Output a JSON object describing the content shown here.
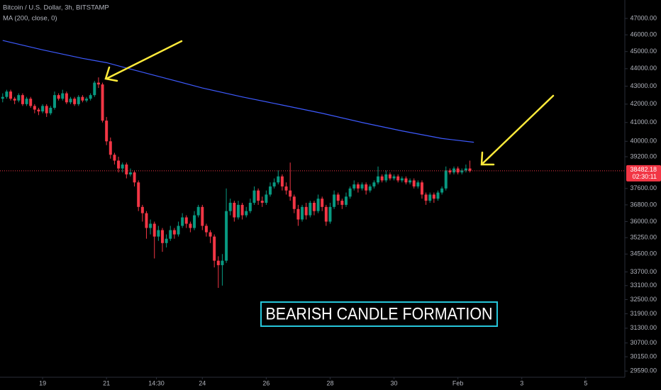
{
  "chart_data": {
    "type": "candlestick",
    "title": "Bitcoin / U.S. Dollar, 3h, BITSTAMP",
    "subtitle": "MA (200, close, 0)",
    "annotation": "BEARISH CANDLE FORMATION",
    "up_color": "#089981",
    "down_color": "#f23645",
    "log_scale": true,
    "grid": false,
    "x": [
      -10,
      -9,
      -8,
      -7,
      -6,
      -5,
      -4,
      -3,
      -2,
      -1,
      0,
      1,
      2,
      3,
      4,
      5,
      6,
      7,
      8,
      9,
      10,
      11,
      12,
      13,
      14,
      15,
      16,
      17,
      18,
      19,
      20,
      21,
      22,
      23,
      24,
      25,
      26,
      27,
      28,
      29,
      30,
      31,
      32,
      33,
      34,
      35,
      36,
      37,
      38,
      39,
      40,
      41,
      42,
      43,
      44,
      45,
      46,
      47,
      48,
      49,
      50,
      51,
      52,
      53,
      54,
      55,
      56,
      57,
      58,
      59,
      60,
      61,
      62,
      63,
      64,
      65,
      66,
      67,
      68,
      69,
      70,
      71,
      72,
      73,
      74,
      75,
      76,
      77,
      78,
      79,
      80,
      81,
      82,
      83,
      84,
      85,
      86,
      87,
      88,
      89,
      90,
      91,
      92,
      93,
      94,
      95,
      96,
      97,
      98,
      99,
      100,
      101,
      102,
      103,
      104,
      105,
      106,
      107
    ],
    "open": [
      42300,
      42400,
      42700,
      42300,
      42200,
      42500,
      42000,
      42300,
      41900,
      41700,
      41600,
      41900,
      41500,
      41800,
      42500,
      42300,
      42600,
      42100,
      42300,
      42000,
      42400,
      42200,
      42300,
      42500,
      43200,
      43100,
      41100,
      40000,
      39300,
      39000,
      38600,
      38800,
      38300,
      38400,
      37900,
      36700,
      36400,
      35700,
      35900,
      35300,
      35600,
      35000,
      35200,
      35600,
      35400,
      35800,
      36200,
      35900,
      35700,
      36300,
      36700,
      35800,
      35500,
      35300,
      34200,
      34000,
      34200,
      36500,
      36900,
      36200,
      36800,
      36300,
      36500,
      36900,
      37500,
      37000,
      36900,
      37300,
      37700,
      37900,
      38200,
      37700,
      37500,
      37200,
      36600,
      36100,
      36700,
      36300,
      36900,
      36500,
      37100,
      36700,
      36000,
      36700,
      37300,
      37000,
      36800,
      37200,
      37600,
      37800,
      37600,
      37800,
      37500,
      37700,
      37900,
      38200,
      38000,
      38300,
      38100,
      38200,
      38000,
      38100,
      37900,
      38000,
      37700,
      37900,
      37300,
      37000,
      37300,
      37100,
      37400,
      37600,
      38500,
      38400,
      38600,
      38400,
      38500,
      38600
    ],
    "high": [
      42600,
      42800,
      42800,
      42400,
      42600,
      42600,
      42400,
      42400,
      42000,
      41800,
      42000,
      42000,
      41900,
      42700,
      42600,
      42800,
      42700,
      42400,
      42400,
      42500,
      42500,
      42400,
      42600,
      43300,
      43500,
      43200,
      41300,
      40200,
      39400,
      39200,
      38900,
      38900,
      38600,
      38500,
      38000,
      36800,
      36500,
      36100,
      36000,
      35800,
      35700,
      35400,
      35800,
      35700,
      36000,
      36400,
      36300,
      36000,
      36500,
      36800,
      36800,
      35900,
      35600,
      35400,
      34400,
      34500,
      37600,
      37100,
      37000,
      37000,
      36900,
      36700,
      37100,
      37700,
      37600,
      37200,
      37500,
      37900,
      38100,
      38500,
      38300,
      37900,
      38900,
      37300,
      36800,
      36800,
      36900,
      37000,
      37000,
      37300,
      37200,
      36800,
      36900,
      37500,
      37400,
      37100,
      37400,
      37700,
      38000,
      37900,
      37900,
      37900,
      37800,
      38000,
      38700,
      38300,
      38500,
      38400,
      38300,
      38300,
      38200,
      38200,
      38100,
      38100,
      38000,
      38000,
      37400,
      37400,
      37400,
      37500,
      37700,
      38700,
      38600,
      38700,
      38700,
      38600,
      38800,
      39000
    ],
    "low": [
      42100,
      42300,
      42200,
      42000,
      42100,
      41900,
      41900,
      41800,
      41500,
      41400,
      41500,
      41300,
      41400,
      41700,
      42200,
      42200,
      42000,
      42000,
      41900,
      41900,
      42100,
      42100,
      42200,
      42400,
      42900,
      41000,
      39800,
      39100,
      38800,
      38400,
      38400,
      38100,
      38200,
      37700,
      36500,
      36000,
      35200,
      35400,
      34300,
      35100,
      34600,
      34800,
      35100,
      35200,
      35300,
      35700,
      35700,
      35500,
      35600,
      36200,
      35600,
      35300,
      35000,
      33900,
      33000,
      33100,
      34100,
      36300,
      36000,
      36100,
      36100,
      36200,
      36400,
      36800,
      36800,
      36700,
      36800,
      37200,
      37600,
      37800,
      37500,
      37300,
      37000,
      36400,
      35800,
      36000,
      36100,
      36200,
      36300,
      36400,
      36500,
      35800,
      35900,
      36600,
      36800,
      36600,
      36700,
      37100,
      37500,
      37400,
      37500,
      37300,
      37400,
      37600,
      37800,
      37900,
      37900,
      38000,
      38000,
      37900,
      37900,
      37800,
      37800,
      37600,
      37600,
      37100,
      36800,
      36900,
      36900,
      37000,
      37300,
      37500,
      38300,
      38300,
      38300,
      38300,
      38400,
      38400
    ],
    "close": [
      42400,
      42700,
      42300,
      42200,
      42500,
      42000,
      42300,
      41900,
      41700,
      41600,
      41900,
      41500,
      41800,
      42500,
      42300,
      42600,
      42100,
      42300,
      42000,
      42400,
      42200,
      42300,
      42500,
      43200,
      43100,
      41100,
      40000,
      39300,
      39000,
      38600,
      38800,
      38300,
      38400,
      37900,
      36700,
      36400,
      35700,
      35900,
      35300,
      35600,
      35000,
      35200,
      35600,
      35400,
      35800,
      36200,
      35900,
      35700,
      36300,
      36700,
      35800,
      35500,
      35300,
      34200,
      34000,
      34200,
      36500,
      36900,
      36200,
      36800,
      36300,
      36500,
      36900,
      37500,
      37000,
      36900,
      37300,
      37700,
      37900,
      38200,
      37700,
      37500,
      37200,
      36600,
      36100,
      36700,
      36300,
      36900,
      36500,
      37100,
      36700,
      36000,
      36700,
      37300,
      37000,
      36800,
      37200,
      37600,
      37800,
      37600,
      37800,
      37500,
      37700,
      37900,
      38200,
      38000,
      38300,
      38100,
      38200,
      38000,
      38100,
      37900,
      38000,
      37700,
      37900,
      37300,
      37000,
      37300,
      37100,
      37400,
      37600,
      38500,
      38400,
      38600,
      38400,
      38500,
      38600,
      38482.18
    ],
    "ma": {
      "color": "#3d5afe",
      "x": [
        -10,
        0,
        10,
        16,
        20,
        30,
        40,
        50,
        60,
        70,
        80,
        90,
        100,
        108
      ],
      "values": [
        45660,
        45100,
        44600,
        44350,
        44100,
        43500,
        42900,
        42400,
        41950,
        41500,
        41000,
        40550,
        40150,
        39950
      ]
    },
    "last_price": 38482.18,
    "countdown": "02:30:11",
    "xlim": [
      -10.67,
      145.8
    ],
    "xticks": [
      {
        "value": 0,
        "label": "19"
      },
      {
        "value": 16,
        "label": "21"
      },
      {
        "value": 28.5,
        "label": "14:30"
      },
      {
        "value": 40,
        "label": "24"
      },
      {
        "value": 56,
        "label": "26"
      },
      {
        "value": 72,
        "label": "28"
      },
      {
        "value": 88,
        "label": "30"
      },
      {
        "value": 104,
        "label": "Feb"
      },
      {
        "value": 120,
        "label": "3"
      },
      {
        "value": 136,
        "label": "5"
      }
    ],
    "ylim": [
      29350,
      48150
    ],
    "yticks": [
      {
        "value": 47000,
        "label": "47000.00"
      },
      {
        "value": 46000,
        "label": "46000.00"
      },
      {
        "value": 45000,
        "label": "45000.00"
      },
      {
        "value": 44000,
        "label": "44000.00"
      },
      {
        "value": 43000,
        "label": "43000.00"
      },
      {
        "value": 42000,
        "label": "42000.00"
      },
      {
        "value": 41000,
        "label": "41000.00"
      },
      {
        "value": 40000,
        "label": "40000.00"
      },
      {
        "value": 39200,
        "label": "39200.00"
      },
      {
        "value": 37600,
        "label": "37600.00"
      },
      {
        "value": 36800,
        "label": "36800.00"
      },
      {
        "value": 36000,
        "label": "36000.00"
      },
      {
        "value": 35250,
        "label": "35250.00"
      },
      {
        "value": 34500,
        "label": "34500.00"
      },
      {
        "value": 33700,
        "label": "33700.00"
      },
      {
        "value": 33100,
        "label": "33100.00"
      },
      {
        "value": 32500,
        "label": "32500.00"
      },
      {
        "value": 31900,
        "label": "31900.00"
      },
      {
        "value": 31300,
        "label": "31300.00"
      },
      {
        "value": 30700,
        "label": "30700.00"
      },
      {
        "value": 30150,
        "label": "30150.00"
      },
      {
        "value": 29590,
        "label": "29590.00"
      }
    ]
  }
}
